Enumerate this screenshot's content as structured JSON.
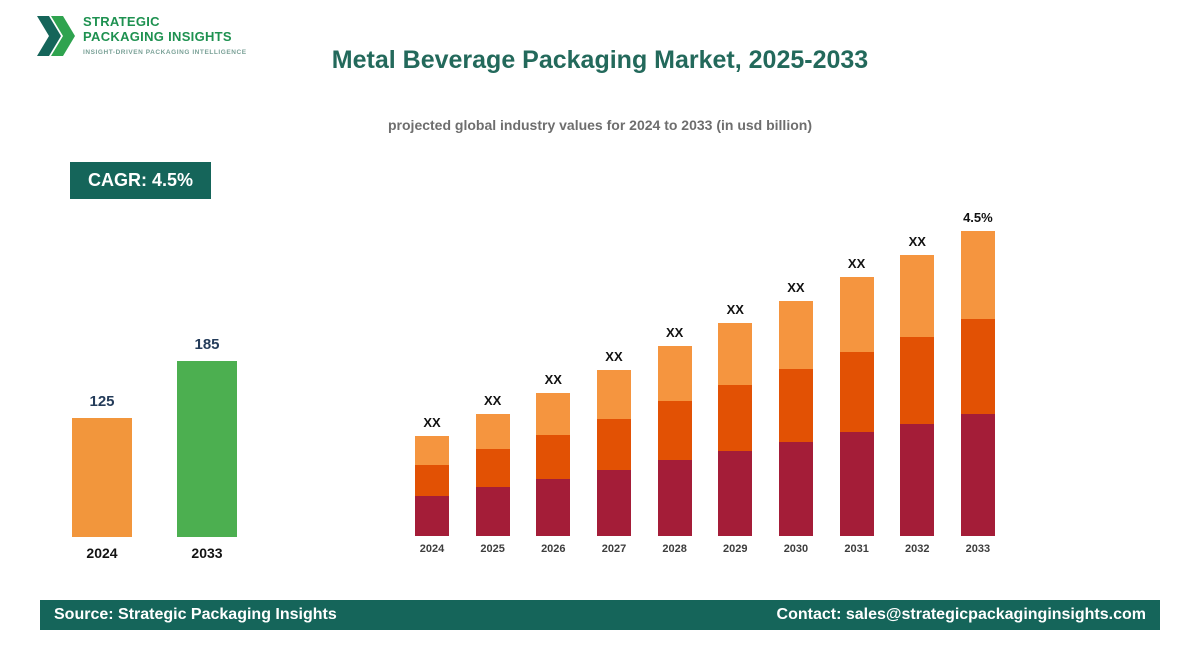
{
  "theme": {
    "teal": "#15655A",
    "title_teal": "#23695B",
    "logo_green": "#1E9150",
    "orange": "#F2963C",
    "green": "#4CAF50",
    "crimson": "#A41D38",
    "orange_red": "#E25104",
    "light_orange": "#F5953F"
  },
  "brand": {
    "name_line1": "STRATEGIC",
    "name_line2": "PACKAGING INSIGHTS",
    "tagline": "INSIGHT-DRIVEN PACKAGING INTELLIGENCE"
  },
  "header": {
    "title": "Metal Beverage Packaging Market, 2025-2033",
    "subtitle": "projected global industry values for 2024 to 2033 (in usd billion)"
  },
  "cagr_badge": "CAGR: 4.5%",
  "footer": {
    "source": "Source: Strategic Packaging Insights",
    "contact": "Contact: sales@strategicpackaginginsights.com"
  },
  "chart_data": [
    {
      "type": "bar",
      "name": "market-size-2024-vs-2033",
      "categories": [
        "2024",
        "2033"
      ],
      "values": [
        125,
        185
      ],
      "colors": [
        "#F2963C",
        "#4CAF50"
      ],
      "ylim": [
        0,
        200
      ],
      "grid": false,
      "legend": false
    },
    {
      "type": "bar",
      "subtype": "stacked",
      "name": "projected-values-2024-to-2033",
      "categories": [
        "2024",
        "2025",
        "2026",
        "2027",
        "2028",
        "2029",
        "2030",
        "2031",
        "2032",
        "2033"
      ],
      "series": [
        {
          "name": "bottom-segment",
          "color": "#A41D38",
          "values": [
            40,
            49,
            57,
            66,
            76,
            85,
            94,
            104,
            112,
            122
          ]
        },
        {
          "name": "middle-segment",
          "color": "#E25104",
          "values": [
            31,
            38,
            44,
            51,
            59,
            66,
            73,
            80,
            87,
            95
          ]
        },
        {
          "name": "top-segment",
          "color": "#F5953F",
          "values": [
            29,
            35,
            42,
            49,
            55,
            62,
            68,
            75,
            82,
            88
          ]
        }
      ],
      "totals": [
        100,
        122,
        143,
        166,
        190,
        213,
        235,
        259,
        281,
        305
      ],
      "bar_labels": [
        "XX",
        "XX",
        "XX",
        "XX",
        "XX",
        "XX",
        "XX",
        "XX",
        "XX",
        "4.5%"
      ],
      "grid": false,
      "legend": false
    }
  ]
}
